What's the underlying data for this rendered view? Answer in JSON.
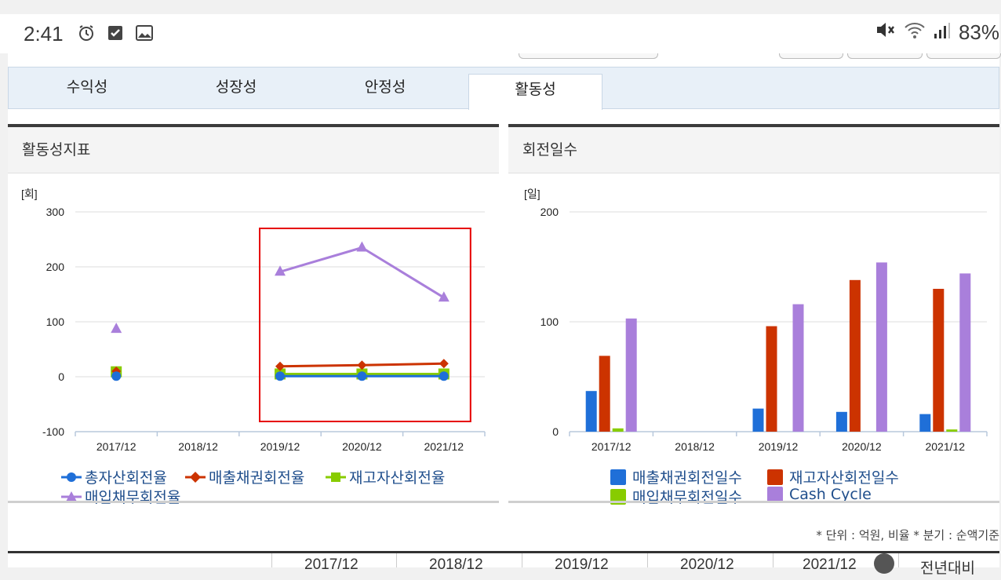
{
  "status_bar": {
    "time": "2:41",
    "battery": "83%",
    "left_icons": [
      "alarm-icon",
      "checkbox-icon",
      "image-icon"
    ],
    "right_icons": [
      "mute-icon",
      "wifi-icon",
      "signal-icon"
    ]
  },
  "tabs": [
    {
      "label": "수익성",
      "active": false
    },
    {
      "label": "성장성",
      "active": false
    },
    {
      "label": "안정성",
      "active": false
    },
    {
      "label": "활동성",
      "active": true
    }
  ],
  "left_panel": {
    "title": "활동성지표",
    "unit": "[회]"
  },
  "right_panel": {
    "title": "회전일수",
    "unit": "[일]"
  },
  "colors": {
    "blue": "#1f6fd8",
    "red": "#cc3300",
    "green": "#88cc00",
    "purple": "#a97fdb",
    "highlight": "#e60000",
    "legend_text": "#1f4e8c"
  },
  "chart_data": [
    {
      "type": "line",
      "title": "활동성지표",
      "ylabel": "[회]",
      "ylim": [
        -100,
        300
      ],
      "yticks": [
        "300",
        "200",
        "100",
        "0",
        "-100"
      ],
      "categories": [
        "2017/12",
        "2018/12",
        "2019/12",
        "2020/12",
        "2021/12"
      ],
      "series": [
        {
          "name": "총자산회전율",
          "values": [
            1,
            null,
            1,
            1,
            1
          ]
        },
        {
          "name": "매출채권회전율",
          "values": [
            10,
            null,
            19,
            21,
            24
          ]
        },
        {
          "name": "재고자산회전율",
          "values": [
            9,
            null,
            5,
            5,
            5
          ]
        },
        {
          "name": "매입채무회전율",
          "values": [
            87,
            null,
            191,
            235,
            144
          ]
        }
      ],
      "highlight_box": [
        "2019/12",
        "2021/12"
      ]
    },
    {
      "type": "bar",
      "title": "회전일수",
      "ylabel": "[일]",
      "ylim": [
        0,
        200
      ],
      "yticks": [
        "200",
        "100",
        "0"
      ],
      "categories": [
        "2017/12",
        "2018/12",
        "2019/12",
        "2020/12",
        "2021/12"
      ],
      "series": [
        {
          "name": "매출채권회전일수",
          "values": [
            37,
            null,
            21,
            18,
            16
          ]
        },
        {
          "name": "재고자산회전일수",
          "values": [
            69,
            null,
            96,
            138,
            130
          ]
        },
        {
          "name": "매입채무회전일수",
          "values": [
            3,
            null,
            0,
            0,
            2
          ]
        },
        {
          "name": "Cash Cycle",
          "values": [
            103,
            null,
            116,
            154,
            144
          ]
        }
      ]
    }
  ],
  "footer": {
    "unit_note": "* 단위 : 억원, 비율   * 분기 : 순액기준",
    "table_headers": [
      "2017/12",
      "2018/12",
      "2019/12",
      "2020/12",
      "2021/12",
      "전년대비"
    ]
  }
}
